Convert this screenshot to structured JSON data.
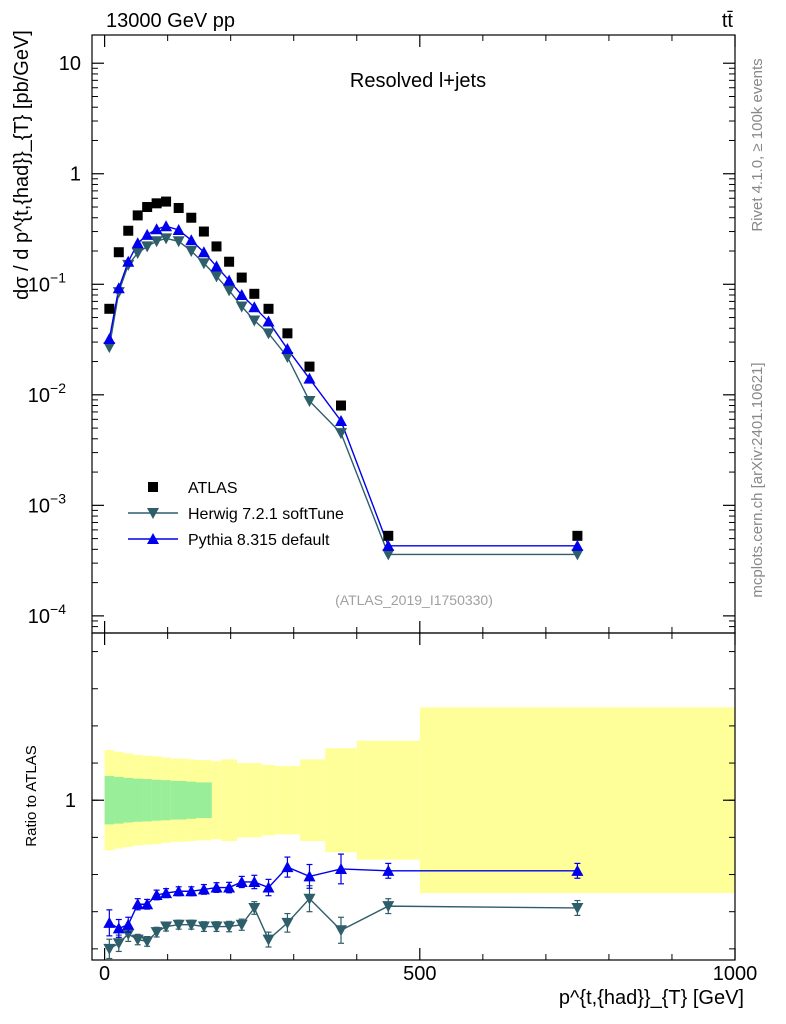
{
  "header": {
    "energy_label": "13000 GeV pp",
    "process_label": "tt̄",
    "plot_title": "Resolved l+jets",
    "analysis_id": "(ATLAS_2019_I1750330)",
    "side_rivet": "Rivet 4.1.0, ≥ 100k events",
    "side_site": "mcplots.cern.ch [arXiv:2401.10621]"
  },
  "chart_data": [
    {
      "type": "scatter",
      "panel": "main",
      "yscale": "log",
      "ylabel": "dσ / d p^{t,{had}}_{T} [pb/GeV]",
      "ylim": [
        7e-05,
        18
      ],
      "y_ticks": [
        {
          "v": 0.0001,
          "label": "10",
          "exp": "−4"
        },
        {
          "v": 0.001,
          "label": "10",
          "exp": "−3"
        },
        {
          "v": 0.01,
          "label": "10",
          "exp": "−2"
        },
        {
          "v": 0.1,
          "label": "10",
          "exp": "−1"
        },
        {
          "v": 1,
          "label": "1",
          "exp": ""
        },
        {
          "v": 10,
          "label": "10",
          "exp": ""
        }
      ],
      "x": [
        7.5,
        22.5,
        37.5,
        52.5,
        67.5,
        82.5,
        97.5,
        117.5,
        137.5,
        157.5,
        177.5,
        197.5,
        217.5,
        237.5,
        260,
        290,
        325,
        375,
        450,
        750
      ],
      "series": [
        {
          "name": "ATLAS",
          "color": "#000000",
          "marker": "square",
          "values": [
            0.06,
            0.195,
            0.305,
            0.42,
            0.5,
            0.54,
            0.56,
            0.49,
            0.4,
            0.3,
            0.22,
            0.16,
            0.115,
            0.082,
            0.06,
            0.036,
            0.018,
            0.008,
            0.00053,
            0.00053
          ]
        },
        {
          "name": "Herwig 7.2.1 softTune",
          "color": "#2e5e6a",
          "marker": "triangle-down",
          "values": [
            0.027,
            0.085,
            0.15,
            0.192,
            0.22,
            0.245,
            0.26,
            0.245,
            0.2,
            0.155,
            0.118,
            0.088,
            0.063,
            0.047,
            0.036,
            0.022,
            0.0088,
            0.0045,
            0.00036,
            0.00036
          ]
        },
        {
          "name": "Pythia 8.315 default",
          "color": "#0000ee",
          "marker": "triangle-up",
          "values": [
            0.032,
            0.092,
            0.16,
            0.235,
            0.28,
            0.315,
            0.335,
            0.31,
            0.25,
            0.195,
            0.145,
            0.108,
            0.08,
            0.062,
            0.046,
            0.026,
            0.014,
            0.0058,
            0.00043,
            0.00043
          ]
        }
      ]
    },
    {
      "type": "scatter",
      "panel": "ratio",
      "ylabel": "Ratio to ATLAS",
      "ylim": [
        0.57,
        1.45
      ],
      "y_ticks": [
        {
          "v": 1,
          "label": "1"
        }
      ],
      "xlabel": "p^{t,{had}}_{T} [GeV]",
      "xlim": [
        -20,
        1000
      ],
      "x_ticks": [
        {
          "v": 0,
          "label": "0"
        },
        {
          "v": 500,
          "label": "500"
        },
        {
          "v": 1000,
          "label": "1000"
        }
      ],
      "x": [
        7.5,
        22.5,
        37.5,
        52.5,
        67.5,
        82.5,
        97.5,
        117.5,
        137.5,
        157.5,
        177.5,
        197.5,
        217.5,
        237.5,
        260,
        290,
        325,
        375,
        450,
        750
      ],
      "bins": [
        0,
        15,
        30,
        45,
        60,
        75,
        90,
        105,
        130,
        145,
        170,
        185,
        210,
        225,
        250,
        270,
        310,
        350,
        400,
        500,
        1000
      ],
      "band_stat_half": [
        0.065,
        0.063,
        0.06,
        0.058,
        0.057,
        0.055,
        0.054,
        0.052,
        0.05,
        0.048,
        0,
        0,
        0,
        0,
        0,
        0,
        0,
        0,
        0,
        0
      ],
      "band_total_half": [
        0.135,
        0.13,
        0.126,
        0.122,
        0.12,
        0.118,
        0.115,
        0.112,
        0.11,
        0.108,
        0.105,
        0.11,
        0.1,
        0.1,
        0.095,
        0.092,
        0.11,
        0.14,
        0.16,
        0.25
      ],
      "series": [
        {
          "name": "Herwig 7.2.1 softTune",
          "color": "#2e5e6a",
          "marker": "triangle-down",
          "values": [
            0.6,
            0.615,
            0.64,
            0.625,
            0.62,
            0.645,
            0.66,
            0.665,
            0.665,
            0.66,
            0.66,
            0.66,
            0.665,
            0.71,
            0.625,
            0.67,
            0.735,
            0.65,
            0.715,
            0.71
          ],
          "err": [
            0.026,
            0.022,
            0.02,
            0.014,
            0.013,
            0.013,
            0.012,
            0.012,
            0.012,
            0.013,
            0.013,
            0.014,
            0.015,
            0.017,
            0.02,
            0.025,
            0.035,
            0.035,
            0.02,
            0.02
          ]
        },
        {
          "name": "Pythia 8.315 default",
          "color": "#0000ee",
          "marker": "triangle-up",
          "values": [
            0.67,
            0.655,
            0.665,
            0.72,
            0.72,
            0.745,
            0.75,
            0.755,
            0.755,
            0.76,
            0.765,
            0.765,
            0.78,
            0.78,
            0.765,
            0.82,
            0.795,
            0.815,
            0.81,
            0.81
          ],
          "err": [
            0.035,
            0.024,
            0.02,
            0.015,
            0.013,
            0.013,
            0.012,
            0.012,
            0.012,
            0.013,
            0.013,
            0.014,
            0.015,
            0.018,
            0.022,
            0.027,
            0.032,
            0.04,
            0.02,
            0.02
          ]
        }
      ]
    }
  ]
}
